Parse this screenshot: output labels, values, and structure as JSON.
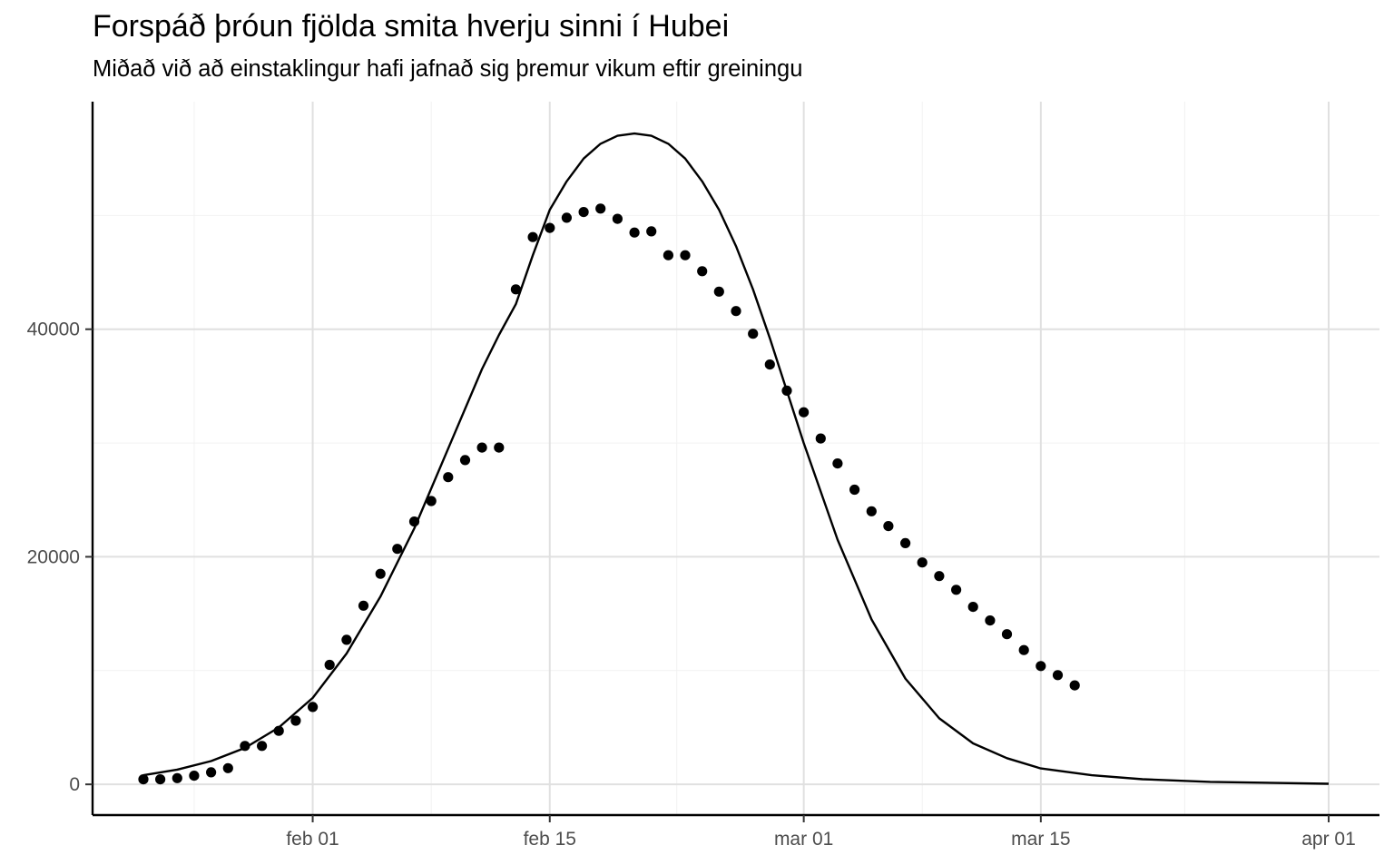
{
  "chart_data": {
    "type": "line",
    "title": "Forspáð þróun fjölda smita hverju sinni í Hubei",
    "subtitle": "Miðað við að einstaklingur hafi jafnað sig þremur vikum eftir greiningu",
    "xlabel": "",
    "ylabel": "",
    "x_axis_type": "date",
    "xlim": [
      "2020-01-19",
      "2020-04-04"
    ],
    "ylim": [
      -2700,
      60000
    ],
    "x_ticks": [
      {
        "date": "2020-02-01",
        "label": "feb 01"
      },
      {
        "date": "2020-02-15",
        "label": "feb 15"
      },
      {
        "date": "2020-03-01",
        "label": "mar 01"
      },
      {
        "date": "2020-03-15",
        "label": "mar 15"
      },
      {
        "date": "2020-04-01",
        "label": "apr 01"
      }
    ],
    "y_ticks": [
      {
        "value": 0,
        "label": "0"
      },
      {
        "value": 20000,
        "label": "20000"
      },
      {
        "value": 40000,
        "label": "40000"
      }
    ],
    "grid": true,
    "legend": "none",
    "series": [
      {
        "kind": "line",
        "color": "#000000",
        "points": [
          [
            "2020-01-22",
            800
          ],
          [
            "2020-01-24",
            1300
          ],
          [
            "2020-01-26",
            2050
          ],
          [
            "2020-01-28",
            3200
          ],
          [
            "2020-01-30",
            5000
          ],
          [
            "2020-02-01",
            7600
          ],
          [
            "2020-02-03",
            11500
          ],
          [
            "2020-02-05",
            16500
          ],
          [
            "2020-02-07",
            22500
          ],
          [
            "2020-02-09",
            29500
          ],
          [
            "2020-02-11",
            36500
          ],
          [
            "2020-02-12",
            39500
          ],
          [
            "2020-02-13",
            42200
          ],
          [
            "2020-02-14",
            46500
          ],
          [
            "2020-02-15",
            50500
          ],
          [
            "2020-02-16",
            53000
          ],
          [
            "2020-02-17",
            55000
          ],
          [
            "2020-02-18",
            56300
          ],
          [
            "2020-02-19",
            57000
          ],
          [
            "2020-02-20",
            57200
          ],
          [
            "2020-02-21",
            57000
          ],
          [
            "2020-02-22",
            56300
          ],
          [
            "2020-02-23",
            55000
          ],
          [
            "2020-02-24",
            53000
          ],
          [
            "2020-02-25",
            50500
          ],
          [
            "2020-02-26",
            47300
          ],
          [
            "2020-02-27",
            43500
          ],
          [
            "2020-02-28",
            39200
          ],
          [
            "2020-03-01",
            30000
          ],
          [
            "2020-03-03",
            21500
          ],
          [
            "2020-03-05",
            14500
          ],
          [
            "2020-03-07",
            9300
          ],
          [
            "2020-03-09",
            5800
          ],
          [
            "2020-03-11",
            3600
          ],
          [
            "2020-03-13",
            2300
          ],
          [
            "2020-03-15",
            1400
          ],
          [
            "2020-03-18",
            800
          ],
          [
            "2020-03-21",
            450
          ],
          [
            "2020-03-25",
            220
          ],
          [
            "2020-04-01",
            50
          ]
        ]
      },
      {
        "kind": "points",
        "color": "#000000",
        "points": [
          [
            "2020-01-22",
            444
          ],
          [
            "2020-01-23",
            444
          ],
          [
            "2020-01-24",
            549
          ],
          [
            "2020-01-25",
            761
          ],
          [
            "2020-01-26",
            1058
          ],
          [
            "2020-01-27",
            1423
          ],
          [
            "2020-01-28",
            3377
          ],
          [
            "2020-01-29",
            3378
          ],
          [
            "2020-01-30",
            4700
          ],
          [
            "2020-01-31",
            5600
          ],
          [
            "2020-02-01",
            6800
          ],
          [
            "2020-02-02",
            10500
          ],
          [
            "2020-02-03",
            12700
          ],
          [
            "2020-02-04",
            15700
          ],
          [
            "2020-02-05",
            18500
          ],
          [
            "2020-02-06",
            20700
          ],
          [
            "2020-02-07",
            23100
          ],
          [
            "2020-02-08",
            24900
          ],
          [
            "2020-02-09",
            27000
          ],
          [
            "2020-02-10",
            28500
          ],
          [
            "2020-02-11",
            29600
          ],
          [
            "2020-02-12",
            29600
          ],
          [
            "2020-02-13",
            43500
          ],
          [
            "2020-02-14",
            48100
          ],
          [
            "2020-02-15",
            48900
          ],
          [
            "2020-02-16",
            49800
          ],
          [
            "2020-02-17",
            50300
          ],
          [
            "2020-02-18",
            50600
          ],
          [
            "2020-02-19",
            49700
          ],
          [
            "2020-02-20",
            48500
          ],
          [
            "2020-02-21",
            48600
          ],
          [
            "2020-02-22",
            46500
          ],
          [
            "2020-02-23",
            46500
          ],
          [
            "2020-02-24",
            45100
          ],
          [
            "2020-02-25",
            43300
          ],
          [
            "2020-02-26",
            41600
          ],
          [
            "2020-02-27",
            39600
          ],
          [
            "2020-02-28",
            36900
          ],
          [
            "2020-02-29",
            34600
          ],
          [
            "2020-03-01",
            32700
          ],
          [
            "2020-03-02",
            30400
          ],
          [
            "2020-03-03",
            28200
          ],
          [
            "2020-03-04",
            25900
          ],
          [
            "2020-03-05",
            24000
          ],
          [
            "2020-03-06",
            22700
          ],
          [
            "2020-03-07",
            21200
          ],
          [
            "2020-03-08",
            19500
          ],
          [
            "2020-03-09",
            18300
          ],
          [
            "2020-03-10",
            17100
          ],
          [
            "2020-03-11",
            15600
          ],
          [
            "2020-03-12",
            14400
          ],
          [
            "2020-03-13",
            13200
          ],
          [
            "2020-03-14",
            11800
          ],
          [
            "2020-03-15",
            10400
          ],
          [
            "2020-03-16",
            9600
          ],
          [
            "2020-03-17",
            8700
          ]
        ]
      }
    ]
  }
}
